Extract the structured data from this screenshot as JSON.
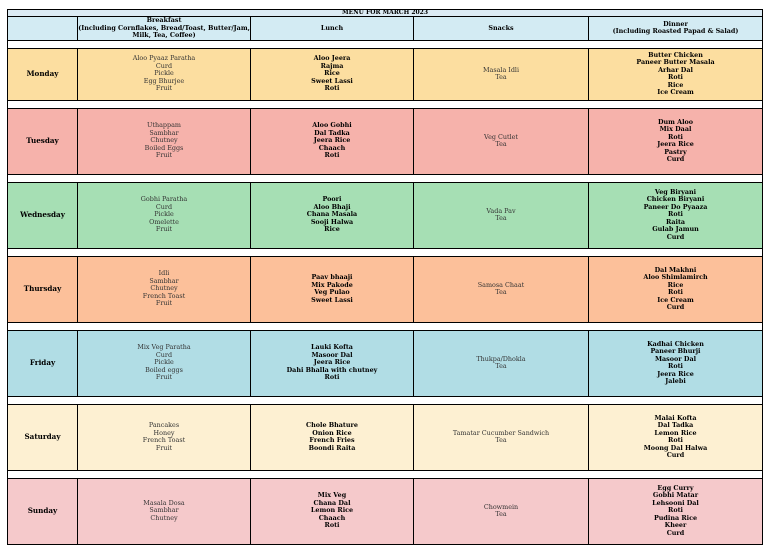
{
  "title": "MENU FOR MARCH 2023",
  "headers": {
    "breakfast": [
      "Breakfast",
      "(Including Cornflakes, Bread/Toast, Butter/Jam,",
      "Milk, Tea, Coffee)"
    ],
    "lunch": [
      "Lunch"
    ],
    "snacks": [
      "Snacks"
    ],
    "dinner": [
      "Dinner",
      "(Including Roasted Papad & Salad)"
    ]
  },
  "days": [
    {
      "day": "Monday",
      "breakfast": [
        "Aloo Pyaaz Paratha",
        "Curd",
        "Pickle",
        "Egg Bhurjee",
        "Fruit"
      ],
      "lunch": [
        "Aloo Jeera",
        "Rajma",
        "Rice",
        "Sweet Lassi",
        "Roti"
      ],
      "snacks": [
        "Masala Idli",
        "Tea"
      ],
      "dinner": [
        "Butter Chicken",
        "Paneer Butter Masala",
        "Arhar Dal",
        "Roti",
        "Rice",
        "Ice Cream"
      ]
    },
    {
      "day": "Tuesday",
      "breakfast": [
        "Uthappam",
        "Sambhar",
        "Chutney",
        "Boiled Eggs",
        "Fruit"
      ],
      "lunch": [
        "Aloo Gobhi",
        "Dal Tadka",
        "Jeera Rice",
        "Chaach",
        "Roti"
      ],
      "snacks": [
        "Veg Cutlet",
        "Tea"
      ],
      "dinner": [
        "Dum Aloo",
        "Mix Daal",
        "Roti",
        "Jeera Rice",
        "Pastry",
        "Curd"
      ]
    },
    {
      "day": "Wednesday",
      "breakfast": [
        "Gobhi Paratha",
        "Curd",
        "Pickle",
        "Omelette",
        "Fruit"
      ],
      "lunch": [
        "Poori",
        "Aloo Bhaji",
        "Chana Masala",
        "Sooji Halwa",
        "Rice"
      ],
      "snacks": [
        "Vada Pav",
        "Tea"
      ],
      "dinner": [
        "Veg Biryani",
        "Chicken Biryani",
        "Paneer Do Pyaaza",
        "Roti",
        "Raita",
        "Gulab Jamun",
        "Curd"
      ]
    },
    {
      "day": "Thursday",
      "breakfast": [
        "Idli",
        "Sambhar",
        "Chutney",
        "French Toast",
        "Fruit"
      ],
      "lunch": [
        "Paav bhaaji",
        "Mix Pakode",
        "Veg Pulao",
        "Sweet Lassi"
      ],
      "snacks": [
        "Samosa Chaat",
        "Tea"
      ],
      "dinner": [
        "Dal Makhni",
        "Aloo Shimlamirch",
        "Rice",
        "Roti",
        "Ice Cream",
        "Curd"
      ]
    },
    {
      "day": "Friday",
      "breakfast": [
        "Mix Veg Paratha",
        "Curd",
        "Pickle",
        "Boiled eggs",
        "Fruit"
      ],
      "lunch": [
        "Lauki Kofta",
        "Masoor Dal",
        "Jeera Rice",
        "Dahi Bhalla with chutney",
        "Roti"
      ],
      "snacks": [
        "Thukpa/Dhokla",
        "Tea"
      ],
      "dinner": [
        "Kadhai Chicken",
        "Paneer Bhurji",
        "Masoor Dal",
        "Roti",
        "Jeera Rice",
        "Jalebi"
      ]
    },
    {
      "day": "Saturday",
      "breakfast": [
        "Pancakes",
        "Honey",
        "French Toast",
        "Fruit"
      ],
      "lunch": [
        "Chole Bhature",
        "Onion Rice",
        "French Fries",
        "Boondi Raita"
      ],
      "snacks": [
        "Tamatar Cucumber Sandwich",
        "Tea"
      ],
      "dinner": [
        "Malai Kofta",
        "Dal Tadka",
        "Lemon Rice",
        "Roti",
        "Moong Dal Halwa",
        "Curd"
      ]
    },
    {
      "day": "Sunday",
      "breakfast": [
        "Masala Dosa",
        "Sambhar",
        "Chutney"
      ],
      "lunch": [
        "Mix Veg",
        "Chana Dal",
        "Lemon Rice",
        "Chaach",
        "Roti"
      ],
      "snacks": [
        "Chowmein",
        "Tea"
      ],
      "dinner": [
        "Egg Curry",
        "Gobhi Matar",
        "Lehsooni Dal",
        "Roti",
        "Pudina Rice",
        "Kheer",
        "Curd"
      ]
    }
  ]
}
